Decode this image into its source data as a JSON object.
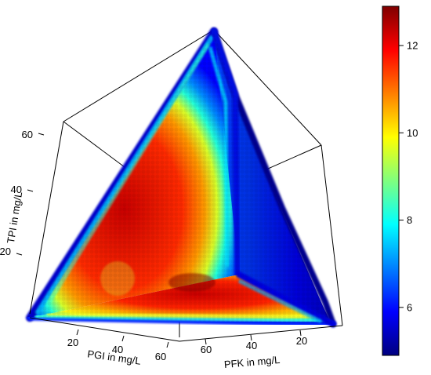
{
  "chart_data": {
    "type": "heatmap",
    "title": "",
    "axes": {
      "tpi": {
        "label": "TPI in mg/L",
        "ticks": [
          20,
          40,
          60
        ]
      },
      "pgi": {
        "label": "PGI in mg/L",
        "ticks": [
          20,
          40,
          60
        ]
      },
      "pfk": {
        "label": "PFK in mg/L",
        "ticks": [
          60,
          40,
          20
        ]
      }
    },
    "colorbar": {
      "ticks": [
        6,
        8,
        10,
        12
      ],
      "range": [
        4.9,
        12.9
      ],
      "colors": [
        "#00007f",
        "#0000ff",
        "#007fff",
        "#00ffff",
        "#7fff7f",
        "#ffff00",
        "#ff7f00",
        "#ff0000",
        "#7f0000"
      ]
    },
    "surface": {
      "peak_value": 12.6,
      "edge_value": 5.2,
      "notes": "value depicted on three faces of a simplex-shaped volume; high in interior, low at edges"
    }
  }
}
